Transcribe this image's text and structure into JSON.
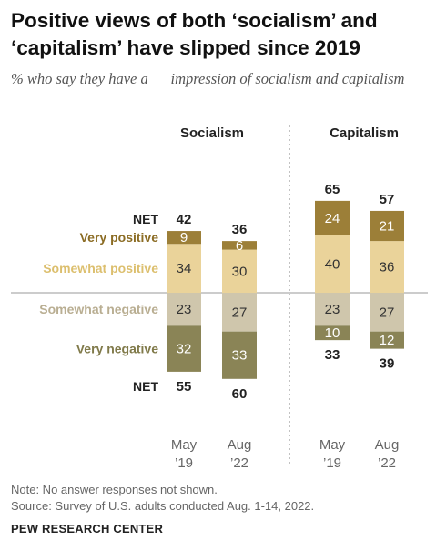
{
  "title": "Positive views of both ‘socialism’ and ‘capitalism’ have slipped since 2019",
  "subtitle": "% who say they have a __ impression of socialism and capitalism",
  "note": "Note: No answer responses not shown.",
  "source": "Source: Survey of U.S. adults conducted Aug. 1-14, 2022.",
  "brand": "PEW RESEARCH CENTER",
  "colors": {
    "very_positive": "#9c7f38",
    "somewhat_positive": "#ead39a",
    "somewhat_negative": "#cfc6ac",
    "very_negative": "#8a8456",
    "very_positive_text": "#8b6c24",
    "somewhat_positive_text": "#dcbf6e",
    "somewhat_negative_text": "#b9ae92",
    "very_negative_text": "#807a4a"
  },
  "chart_data": {
    "type": "bar",
    "layout": "diverging stacked",
    "categories": [
      "May '19",
      "Aug '22"
    ],
    "category_labels": [
      [
        "May",
        "’19"
      ],
      [
        "Aug",
        "’22"
      ]
    ],
    "row_labels": {
      "net": "NET",
      "very_positive": "Very positive",
      "somewhat_positive": "Somewhat positive",
      "somewhat_negative": "Somewhat negative",
      "very_negative": "Very negative"
    },
    "panels": [
      {
        "name": "Socialism",
        "net_positive": [
          42,
          36
        ],
        "net_negative": [
          55,
          60
        ],
        "series": [
          {
            "key": "very_positive",
            "values": [
              9,
              6
            ]
          },
          {
            "key": "somewhat_positive",
            "values": [
              34,
              30
            ]
          },
          {
            "key": "somewhat_negative",
            "values": [
              23,
              27
            ]
          },
          {
            "key": "very_negative",
            "values": [
              32,
              33
            ]
          }
        ]
      },
      {
        "name": "Capitalism",
        "net_positive": [
          65,
          57
        ],
        "net_negative": [
          33,
          39
        ],
        "series": [
          {
            "key": "very_positive",
            "values": [
              24,
              21
            ]
          },
          {
            "key": "somewhat_positive",
            "values": [
              40,
              36
            ]
          },
          {
            "key": "somewhat_negative",
            "values": [
              23,
              27
            ]
          },
          {
            "key": "very_negative",
            "values": [
              10,
              12
            ]
          }
        ]
      }
    ]
  }
}
